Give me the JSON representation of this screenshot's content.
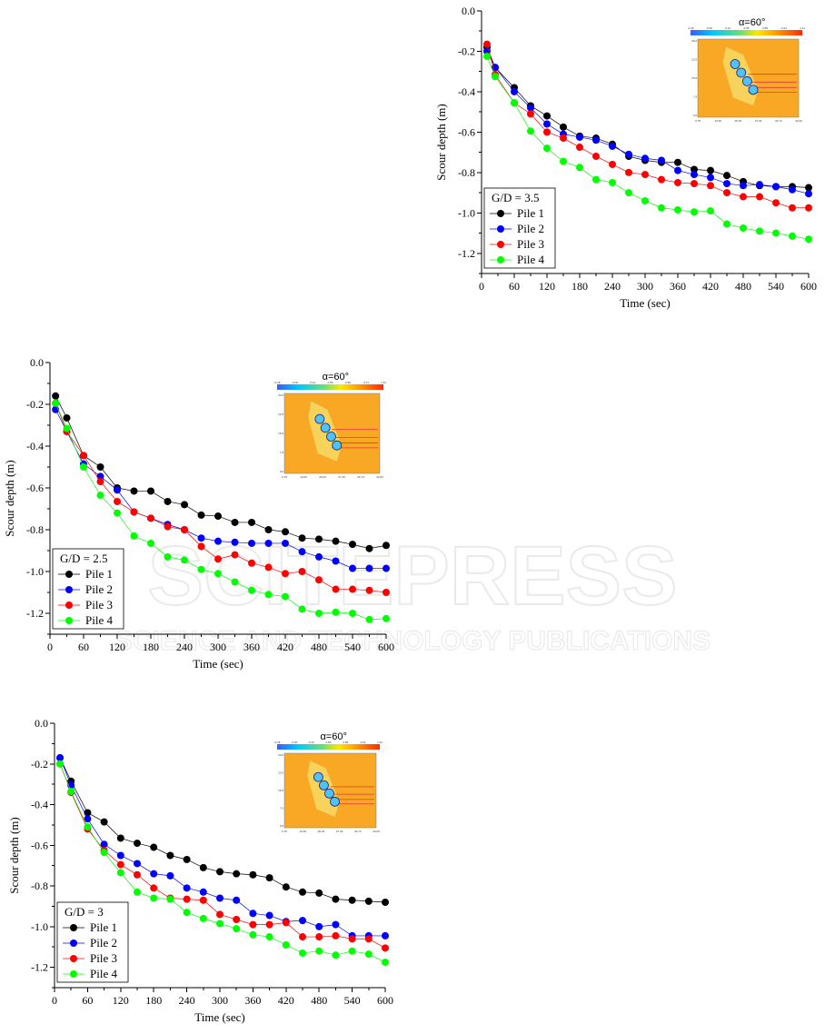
{
  "watermark": {
    "main": "SCITEPRESS",
    "sub": "SCIENCE AND TECHNOLOGY PUBLICATIONS"
  },
  "chart_data": [
    {
      "type": "line",
      "xlabel": "Time (sec)",
      "ylabel": "Scour depth (m)",
      "xlim": [
        0,
        600
      ],
      "ylim": [
        -1.3,
        0.0
      ],
      "xticks": [
        "0",
        "60",
        "120",
        "180",
        "240",
        "300",
        "360",
        "420",
        "480",
        "540",
        "600"
      ],
      "yticks": [
        "0.0",
        "-0.2",
        "-0.4",
        "-0.6",
        "-0.8",
        "-1.0",
        "-1.2"
      ],
      "legend": {
        "title": "G/D = 3.5",
        "placement": "bottom-left"
      },
      "inset": {
        "title": "α=60°",
        "colorbar_labels": [
          "-0.18",
          "-0.00",
          "0.14",
          "0.55",
          "0.89",
          "-0.21",
          "1.31"
        ],
        "y_ticks": [
          "30.0",
          "22.5",
          "15.0",
          "7.5",
          "0.0"
        ],
        "x_ticks": [
          "0.75",
          "12.06",
          "20.02",
          "27.40",
          "34.74",
          "42.00"
        ]
      },
      "x": [
        10,
        25,
        60,
        90,
        120,
        150,
        180,
        210,
        240,
        270,
        300,
        330,
        360,
        390,
        420,
        450,
        480,
        510,
        540,
        570,
        600
      ],
      "series": [
        {
          "name": "Pile 1",
          "color": "#000000",
          "values": [
            -0.18,
            -0.28,
            -0.38,
            -0.47,
            -0.52,
            -0.575,
            -0.62,
            -0.63,
            -0.66,
            -0.72,
            -0.74,
            -0.75,
            -0.75,
            -0.785,
            -0.79,
            -0.815,
            -0.845,
            -0.865,
            -0.87,
            -0.87,
            -0.875
          ]
        },
        {
          "name": "Pile 2",
          "color": "#0000ff",
          "values": [
            -0.2,
            -0.28,
            -0.4,
            -0.48,
            -0.56,
            -0.61,
            -0.625,
            -0.64,
            -0.67,
            -0.71,
            -0.73,
            -0.74,
            -0.79,
            -0.81,
            -0.825,
            -0.855,
            -0.865,
            -0.86,
            -0.87,
            -0.885,
            -0.905
          ]
        },
        {
          "name": "Pile 3",
          "color": "#ff0000",
          "values": [
            -0.165,
            -0.315,
            -0.455,
            -0.51,
            -0.6,
            -0.63,
            -0.675,
            -0.72,
            -0.76,
            -0.8,
            -0.81,
            -0.835,
            -0.85,
            -0.855,
            -0.865,
            -0.9,
            -0.92,
            -0.92,
            -0.95,
            -0.975,
            -0.975
          ]
        },
        {
          "name": "Pile 4",
          "color": "#00ff00",
          "values": [
            -0.225,
            -0.325,
            -0.455,
            -0.595,
            -0.68,
            -0.745,
            -0.775,
            -0.835,
            -0.85,
            -0.9,
            -0.94,
            -0.975,
            -0.985,
            -0.995,
            -0.99,
            -1.055,
            -1.075,
            -1.09,
            -1.1,
            -1.115,
            -1.13
          ]
        }
      ]
    },
    {
      "type": "line",
      "xlabel": "Time (sec)",
      "ylabel": "Scour depth (m)",
      "xlim": [
        0,
        600
      ],
      "ylim": [
        -1.3,
        0.0
      ],
      "xticks": [
        "0",
        "60",
        "120",
        "180",
        "240",
        "300",
        "360",
        "420",
        "480",
        "540",
        "600"
      ],
      "yticks": [
        "0.0",
        "-0.2",
        "-0.4",
        "-0.6",
        "-0.8",
        "-1.0",
        "-1.2"
      ],
      "legend": {
        "title": "G/D = 2.5",
        "placement": "bottom-left"
      },
      "inset": {
        "title": "α=60°",
        "colorbar_labels": [
          "-0.18",
          "-0.00",
          "0.14",
          "0.55",
          "0.89",
          "-0.21",
          "1.31"
        ],
        "y_ticks": [
          "30.0",
          "22.5",
          "15.0",
          "7.5",
          "0.0"
        ],
        "x_ticks": [
          "0.75",
          "12.06",
          "20.02",
          "27.40",
          "34.74",
          "42.00"
        ]
      },
      "x": [
        10,
        30,
        60,
        90,
        120,
        150,
        180,
        210,
        240,
        270,
        300,
        330,
        360,
        390,
        420,
        450,
        480,
        510,
        540,
        570,
        600
      ],
      "series": [
        {
          "name": "Pile 1",
          "color": "#000000",
          "values": [
            -0.16,
            -0.265,
            -0.445,
            -0.5,
            -0.6,
            -0.615,
            -0.615,
            -0.665,
            -0.68,
            -0.73,
            -0.735,
            -0.765,
            -0.765,
            -0.8,
            -0.81,
            -0.84,
            -0.845,
            -0.855,
            -0.87,
            -0.89,
            -0.875
          ]
        },
        {
          "name": "Pile 2",
          "color": "#0000ff",
          "values": [
            -0.225,
            -0.33,
            -0.485,
            -0.545,
            -0.61,
            -0.715,
            -0.745,
            -0.775,
            -0.8,
            -0.84,
            -0.855,
            -0.86,
            -0.865,
            -0.865,
            -0.865,
            -0.905,
            -0.93,
            -0.95,
            -0.985,
            -0.985,
            -0.985
          ]
        },
        {
          "name": "Pile 3",
          "color": "#ff0000",
          "values": [
            -0.195,
            -0.33,
            -0.445,
            -0.57,
            -0.665,
            -0.715,
            -0.745,
            -0.785,
            -0.8,
            -0.88,
            -0.94,
            -0.92,
            -0.96,
            -0.98,
            -1.01,
            -1.0,
            -1.04,
            -1.085,
            -1.085,
            -1.09,
            -1.1
          ]
        },
        {
          "name": "Pile 4",
          "color": "#00ff00",
          "values": [
            -0.195,
            -0.315,
            -0.5,
            -0.635,
            -0.72,
            -0.83,
            -0.865,
            -0.93,
            -0.945,
            -0.99,
            -1.01,
            -1.05,
            -1.09,
            -1.11,
            -1.12,
            -1.18,
            -1.2,
            -1.195,
            -1.2,
            -1.23,
            -1.225
          ]
        }
      ]
    },
    {
      "type": "line",
      "xlabel": "Time (sec)",
      "ylabel": "Scour depth (m)",
      "xlim": [
        0,
        600
      ],
      "ylim": [
        -1.3,
        0.0
      ],
      "xticks": [
        "0",
        "60",
        "120",
        "180",
        "240",
        "300",
        "360",
        "420",
        "480",
        "540",
        "600"
      ],
      "yticks": [
        "0.0",
        "-0.2",
        "-0.4",
        "-0.6",
        "-0.8",
        "-1.0",
        "-1.2"
      ],
      "legend": {
        "title": "G/D = 3",
        "placement": "bottom-left"
      },
      "inset": {
        "title": "α=60°",
        "colorbar_labels": [
          "-0.18",
          "-0.00",
          "0.14",
          "0.55",
          "0.89",
          "-0.21",
          "1.31"
        ],
        "y_ticks": [
          "30.0",
          "22.5",
          "15.0",
          "7.5",
          "0.0"
        ],
        "x_ticks": [
          "0.75",
          "12.06",
          "20.02",
          "27.40",
          "34.74",
          "42.00"
        ]
      },
      "x": [
        10,
        30,
        60,
        90,
        120,
        150,
        180,
        210,
        240,
        270,
        300,
        330,
        360,
        390,
        420,
        450,
        480,
        510,
        540,
        570,
        600
      ],
      "series": [
        {
          "name": "Pile 1",
          "color": "#000000",
          "values": [
            -0.17,
            -0.285,
            -0.44,
            -0.485,
            -0.565,
            -0.59,
            -0.61,
            -0.65,
            -0.67,
            -0.71,
            -0.73,
            -0.74,
            -0.745,
            -0.76,
            -0.805,
            -0.83,
            -0.835,
            -0.865,
            -0.87,
            -0.875,
            -0.88
          ]
        },
        {
          "name": "Pile 2",
          "color": "#0000ff",
          "values": [
            -0.17,
            -0.305,
            -0.47,
            -0.595,
            -0.65,
            -0.69,
            -0.74,
            -0.75,
            -0.81,
            -0.83,
            -0.86,
            -0.87,
            -0.935,
            -0.945,
            -0.975,
            -0.97,
            -1.0,
            -0.99,
            -1.045,
            -1.045,
            -1.045
          ]
        },
        {
          "name": "Pile 3",
          "color": "#ff0000",
          "values": [
            -0.2,
            -0.34,
            -0.52,
            -0.625,
            -0.695,
            -0.745,
            -0.81,
            -0.86,
            -0.865,
            -0.87,
            -0.94,
            -0.965,
            -0.99,
            -0.99,
            -0.98,
            -1.05,
            -1.05,
            -1.045,
            -1.06,
            -1.06,
            -1.105
          ]
        },
        {
          "name": "Pile 4",
          "color": "#00ff00",
          "values": [
            -0.2,
            -0.335,
            -0.51,
            -0.635,
            -0.735,
            -0.83,
            -0.86,
            -0.865,
            -0.93,
            -0.96,
            -0.985,
            -1.01,
            -1.04,
            -1.05,
            -1.09,
            -1.13,
            -1.12,
            -1.14,
            -1.12,
            -1.135,
            -1.175
          ]
        }
      ]
    }
  ]
}
